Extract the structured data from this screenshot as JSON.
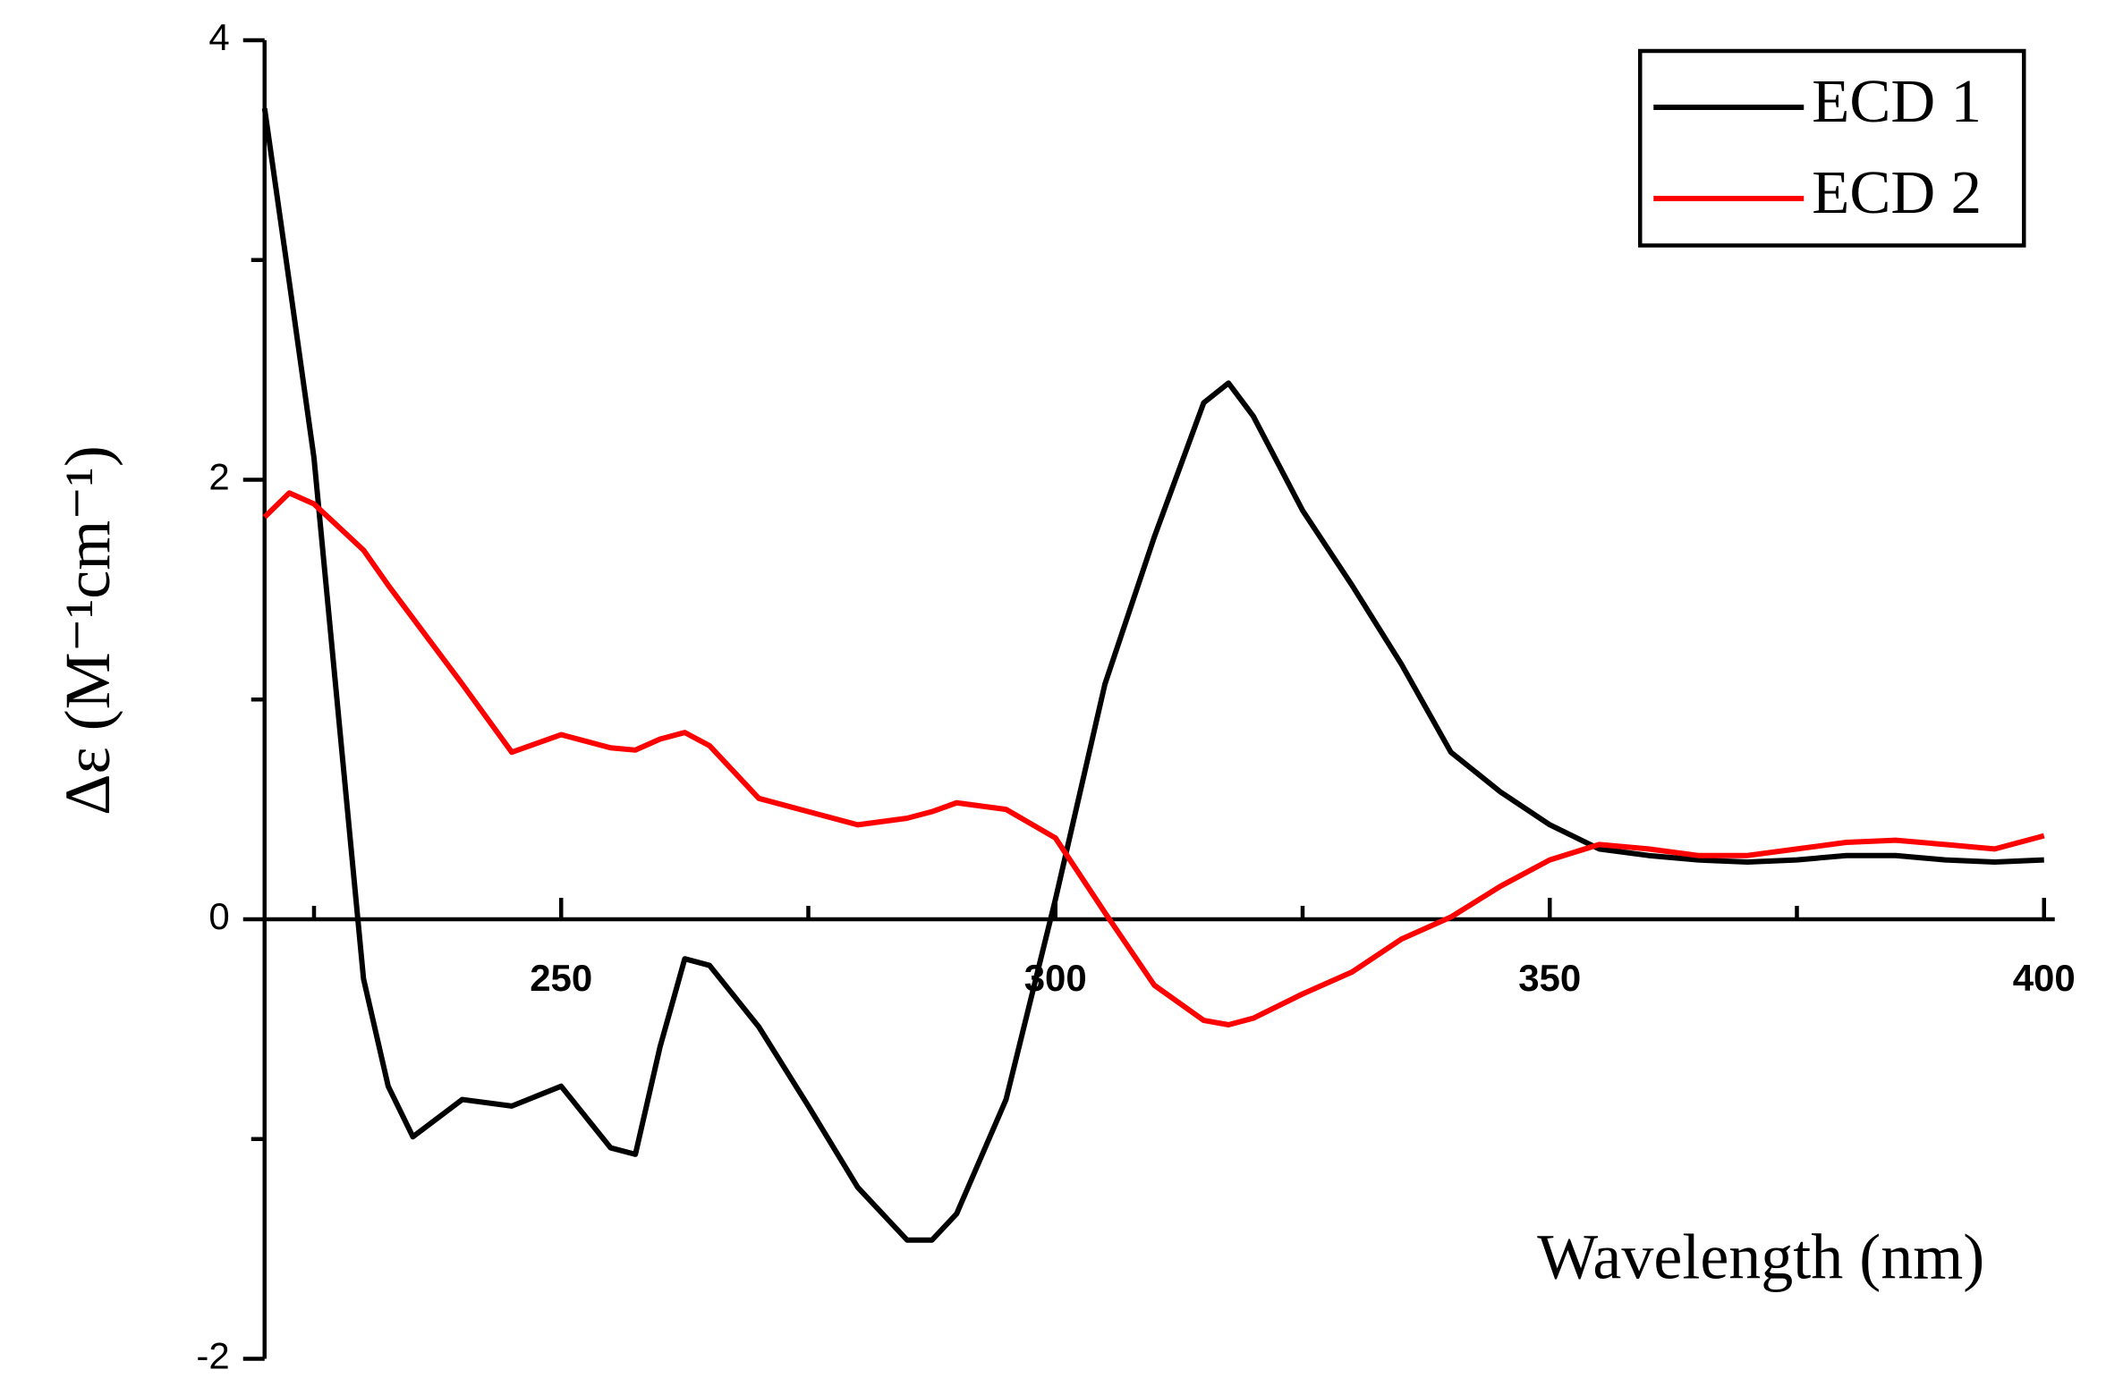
{
  "chart_data": {
    "type": "line",
    "xlabel": "Wavelength (nm)",
    "ylabel": "Δε (M⁻¹cm⁻¹)",
    "xlim": [
      220,
      400
    ],
    "xticks": [
      250,
      300,
      350,
      400
    ],
    "xticks_minor": [
      225,
      275,
      325,
      375
    ],
    "ylim": [
      -2,
      4
    ],
    "yticks": [
      -2,
      0,
      2,
      4
    ],
    "yticks_minor": [
      -1,
      1,
      3
    ],
    "legend": "upper right",
    "x": [
      220,
      222.5,
      225,
      230,
      232.5,
      235,
      240,
      245,
      250,
      255,
      257.5,
      260,
      262.5,
      265,
      270,
      275,
      280,
      285,
      287.5,
      290,
      295,
      300,
      305,
      310,
      315,
      317.5,
      320,
      325,
      330,
      335,
      340,
      345,
      350,
      355,
      360,
      365,
      370,
      375,
      380,
      385,
      390,
      395,
      400
    ],
    "series": [
      {
        "name": "ECD 1",
        "color": "#000000",
        "values": [
          3.69,
          2.9,
          2.1,
          -0.27,
          -0.76,
          -0.99,
          -0.82,
          -0.85,
          -0.76,
          -1.04,
          -1.07,
          -0.58,
          -0.18,
          -0.21,
          -0.49,
          -0.85,
          -1.22,
          -1.46,
          -1.46,
          -1.34,
          -0.82,
          0.09,
          1.07,
          1.74,
          2.35,
          2.44,
          2.29,
          1.86,
          1.52,
          1.16,
          0.76,
          0.58,
          0.43,
          0.32,
          0.29,
          0.27,
          0.26,
          0.27,
          0.29,
          0.29,
          0.27,
          0.26,
          0.27
        ]
      },
      {
        "name": "ECD 2",
        "color": "#ff0000",
        "values": [
          1.83,
          1.94,
          1.89,
          1.68,
          1.52,
          1.37,
          1.07,
          0.76,
          0.84,
          0.78,
          0.77,
          0.82,
          0.85,
          0.79,
          0.55,
          0.49,
          0.43,
          0.46,
          0.49,
          0.53,
          0.5,
          0.37,
          0.03,
          -0.3,
          -0.46,
          -0.48,
          -0.45,
          -0.34,
          -0.24,
          -0.09,
          0.01,
          0.15,
          0.27,
          0.34,
          0.32,
          0.29,
          0.29,
          0.32,
          0.35,
          0.36,
          0.34,
          0.32,
          0.38
        ]
      }
    ]
  }
}
